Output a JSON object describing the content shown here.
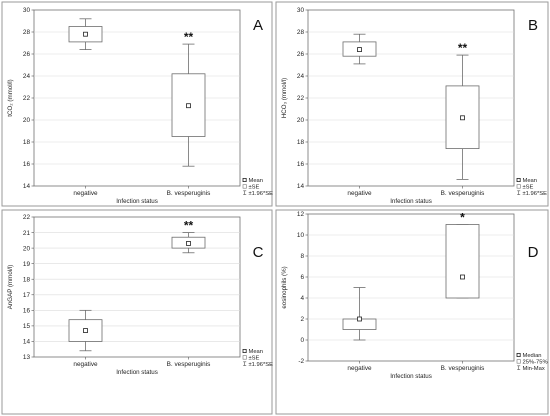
{
  "chart_data": [
    {
      "type": "box",
      "panel_label": "A",
      "ylabel": "tCO₂ (mmol/l)",
      "xlabel": "Infection status",
      "ylim": [
        14,
        30
      ],
      "yticks": [
        14,
        16,
        18,
        20,
        22,
        24,
        26,
        28,
        30
      ],
      "grid": true,
      "categories": [
        "negative",
        "B. vesperuginis"
      ],
      "boxes": [
        {
          "center": 27.8,
          "box_low": 27.1,
          "box_high": 28.5,
          "whisker_low": 26.4,
          "whisker_high": 29.2,
          "significance": ""
        },
        {
          "center": 21.3,
          "box_low": 18.5,
          "box_high": 24.2,
          "whisker_low": 15.8,
          "whisker_high": 26.9,
          "significance": "**"
        }
      ],
      "legend": [
        "Mean",
        "±SE",
        "±1.96*SE"
      ],
      "legend_position": "bottom-right"
    },
    {
      "type": "box",
      "panel_label": "B",
      "ylabel": "HCO₃ (mmol/l)",
      "xlabel": "Infection status",
      "ylim": [
        14,
        30
      ],
      "yticks": [
        14,
        16,
        18,
        20,
        22,
        24,
        26,
        28,
        30
      ],
      "grid": true,
      "categories": [
        "negative",
        "B. vesperuginis"
      ],
      "boxes": [
        {
          "center": 26.4,
          "box_low": 25.8,
          "box_high": 27.1,
          "whisker_low": 25.1,
          "whisker_high": 27.8,
          "significance": ""
        },
        {
          "center": 20.2,
          "box_low": 17.4,
          "box_high": 23.1,
          "whisker_low": 14.6,
          "whisker_high": 25.9,
          "significance": "**"
        }
      ],
      "legend": [
        "Mean",
        "±SE",
        "±1.96*SE"
      ],
      "legend_position": "bottom-right"
    },
    {
      "type": "box",
      "panel_label": "C",
      "ylabel": "AnGAP (mmol/l)",
      "xlabel": "Infection status",
      "ylim": [
        13,
        22
      ],
      "yticks": [
        13,
        14,
        15,
        16,
        17,
        18,
        19,
        20,
        21,
        22
      ],
      "grid": true,
      "categories": [
        "negative",
        "B. vesperuginis"
      ],
      "boxes": [
        {
          "center": 14.7,
          "box_low": 14.0,
          "box_high": 15.4,
          "whisker_low": 13.4,
          "whisker_high": 16.0,
          "significance": ""
        },
        {
          "center": 20.3,
          "box_low": 20.0,
          "box_high": 20.7,
          "whisker_low": 19.7,
          "whisker_high": 21.0,
          "significance": "**"
        }
      ],
      "legend": [
        "Mean",
        "±SE",
        "±1.96*SE"
      ],
      "legend_position": "bottom-right"
    },
    {
      "type": "box",
      "panel_label": "D",
      "ylabel": "eosinophils (%)",
      "xlabel": "Infection status",
      "ylim": [
        -2,
        12
      ],
      "yticks": [
        -2,
        0,
        2,
        4,
        6,
        8,
        10,
        12
      ],
      "grid": true,
      "categories": [
        "negative",
        "B. vesperuginis"
      ],
      "boxes": [
        {
          "center": 2,
          "box_low": 1,
          "box_high": 2,
          "whisker_low": 0,
          "whisker_high": 5,
          "significance": ""
        },
        {
          "center": 6,
          "box_low": 4,
          "box_high": 11,
          "whisker_low": 4,
          "whisker_high": 11,
          "significance": "*"
        }
      ],
      "legend": [
        "Median",
        "25%-75%",
        "Min-Max"
      ],
      "legend_position": "bottom-right"
    }
  ]
}
